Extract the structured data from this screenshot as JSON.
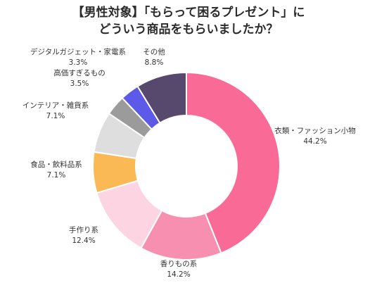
{
  "chart_data": {
    "type": "pie",
    "donut": true,
    "title_lines": [
      "【男性対象】「もらって困るプレゼント」に",
      "どういう商品をもらいましたか？"
    ],
    "categories": [
      "衣類・ファッション小物",
      "香りもの系",
      "手作り系",
      "食品・飲料品系",
      "インテリア・雑貨系",
      "高価すぎるもの",
      "デジタルガジェット・家電系",
      "その他"
    ],
    "values": [
      44.2,
      14.2,
      12.4,
      7.1,
      7.1,
      3.5,
      3.3,
      8.8
    ],
    "value_labels": [
      "44.2%",
      "14.2%",
      "12.4%",
      "7.1%",
      "7.1%",
      "3.5%",
      "3.3%",
      "8.8%"
    ],
    "colors": [
      "#f96b96",
      "#f78fb0",
      "#fcd4e2",
      "#fbb955",
      "#dedede",
      "#9b9b9b",
      "#5c5ae6",
      "#57496e"
    ],
    "start_angle_deg": 0,
    "direction": "clockwise",
    "legend": "none"
  }
}
